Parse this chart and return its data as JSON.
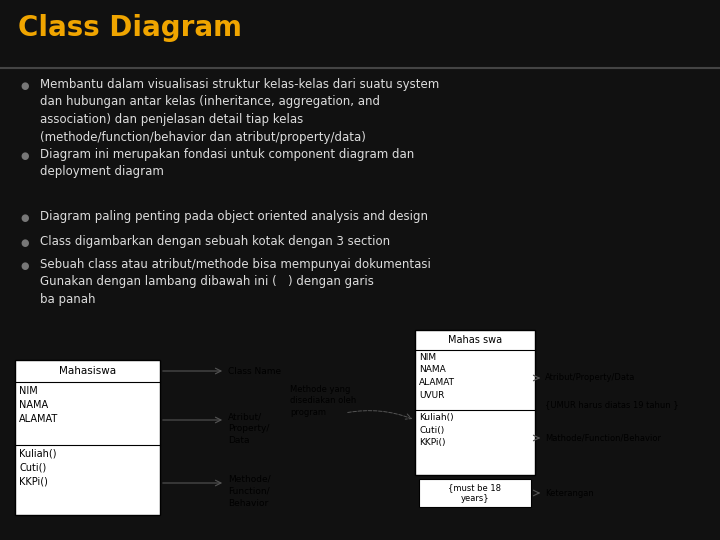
{
  "title": "Class Diagram",
  "title_color": "#f0a500",
  "title_fontsize": 20,
  "bg_color": "#111111",
  "text_color": "#dddddd",
  "bullet_color": "#777777",
  "body_fontsize": 8.5,
  "diagram_text_color": "#000000",
  "diagram_bg": "#ffffff",
  "diagram_border": "#000000",
  "bullets": [
    "Membantu dalam visualisasi struktur kelas-kelas dari suatu system\ndan hubungan antar kelas (inheritance, aggregation, and\nassociation) dan penjelasan detail tiap kelas\n(methode/function/behavior dan atribut/property/data)",
    "Diagram ini merupakan fondasi untuk component diagram dan\ndeployment diagram",
    "Diagram paling penting pada object oriented analysis and design",
    "Class digambarkan dengan sebuah kotak dengan 3 section",
    "Sebuah class atau atribut/methode bisa mempunyai dokumentasi\nGunakan dengan lambang dibawah ini (   ) dengan garis\nba panah"
  ]
}
